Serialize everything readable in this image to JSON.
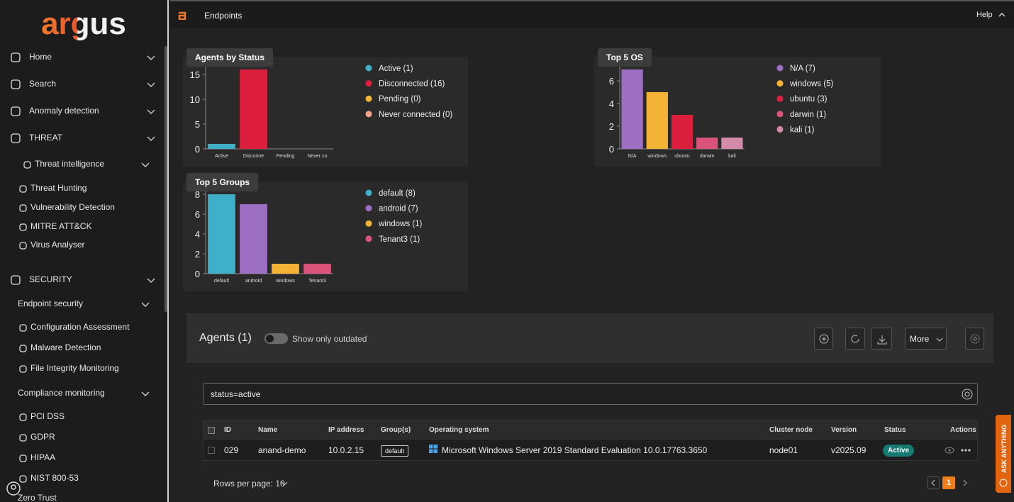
{
  "sidebar": {
    "logo": "argus",
    "items": [
      "Home",
      "Search",
      "Anomaly detection",
      "THREAT",
      "Threat intelligence",
      "Threat Hunting",
      "Vulnerability Detection",
      "MITRE ATT&CK",
      "Virus Analyser",
      "SECURITY",
      "Endpoint security",
      "Configuration Assessment",
      "Malware Detection",
      "File Integrity Monitoring",
      "Compliance monitoring",
      "PCI DSS",
      "GDPR",
      "HIPAA",
      "NIST 800-53",
      "Zero Trust"
    ]
  },
  "topbar": {
    "page": "Endpoints",
    "help": "Help"
  },
  "charts": [
    {
      "type": "bar",
      "title": "Agents by Status",
      "categories": [
        "Active",
        "Disconne",
        "Pending",
        "Never co"
      ],
      "legend": [
        "Active (1)",
        "Disconnected (16)",
        "Pending (0)",
        "Never connected (0)"
      ],
      "values": [
        1,
        16,
        0,
        0
      ],
      "colors": [
        "#3eb1c8",
        "#dc1f3c",
        "#f5b335",
        "#f2a48a"
      ],
      "ylim": [
        0,
        16
      ],
      "yticks": [
        0,
        5,
        10,
        15
      ]
    },
    {
      "type": "bar",
      "title": "Top 5 OS",
      "categories": [
        "N/A",
        "windows",
        "ubuntu",
        "darwin",
        "kali"
      ],
      "legend": [
        "N/A (7)",
        "windows (5)",
        "ubuntu (3)",
        "darwin (1)",
        "kali (1)"
      ],
      "values": [
        7,
        5,
        3,
        1,
        1
      ],
      "colors": [
        "#9d6fc2",
        "#f5b335",
        "#dc1f3c",
        "#d9537b",
        "#d48aa9"
      ],
      "ylim": [
        0,
        7
      ],
      "yticks": [
        0,
        2,
        4,
        6
      ]
    },
    {
      "type": "bar",
      "title": "Top 5 Groups",
      "categories": [
        "default",
        "android",
        "windows",
        "Tenant3"
      ],
      "legend": [
        "default (8)",
        "android (7)",
        "windows (1)",
        "Tenant3 (1)"
      ],
      "values": [
        8,
        7,
        1,
        1
      ],
      "colors": [
        "#3eb1c8",
        "#9d6fc2",
        "#f5b335",
        "#d9537b"
      ],
      "ylim": [
        0,
        8
      ],
      "yticks": [
        0,
        2,
        4,
        6,
        8
      ]
    }
  ],
  "agents": {
    "title": "Agents (1)",
    "toggle": "Show only outdated",
    "more": "More",
    "search": "status=active",
    "columns": [
      "ID",
      "Name",
      "IP address",
      "Group(s)",
      "Operating system",
      "Cluster node",
      "Version",
      "Status",
      "Actions"
    ],
    "rows": [
      [
        "029",
        "anand-demo",
        "10.0.2.15",
        "default",
        "Microsoft Windows Server 2019 Standard Evaluation 10.0.17763.3650",
        "node01",
        "v2025.09",
        "Active"
      ]
    ],
    "rows_per_page": "Rows per page: 10",
    "page": "1"
  },
  "ask": "ASK ANYTHING"
}
